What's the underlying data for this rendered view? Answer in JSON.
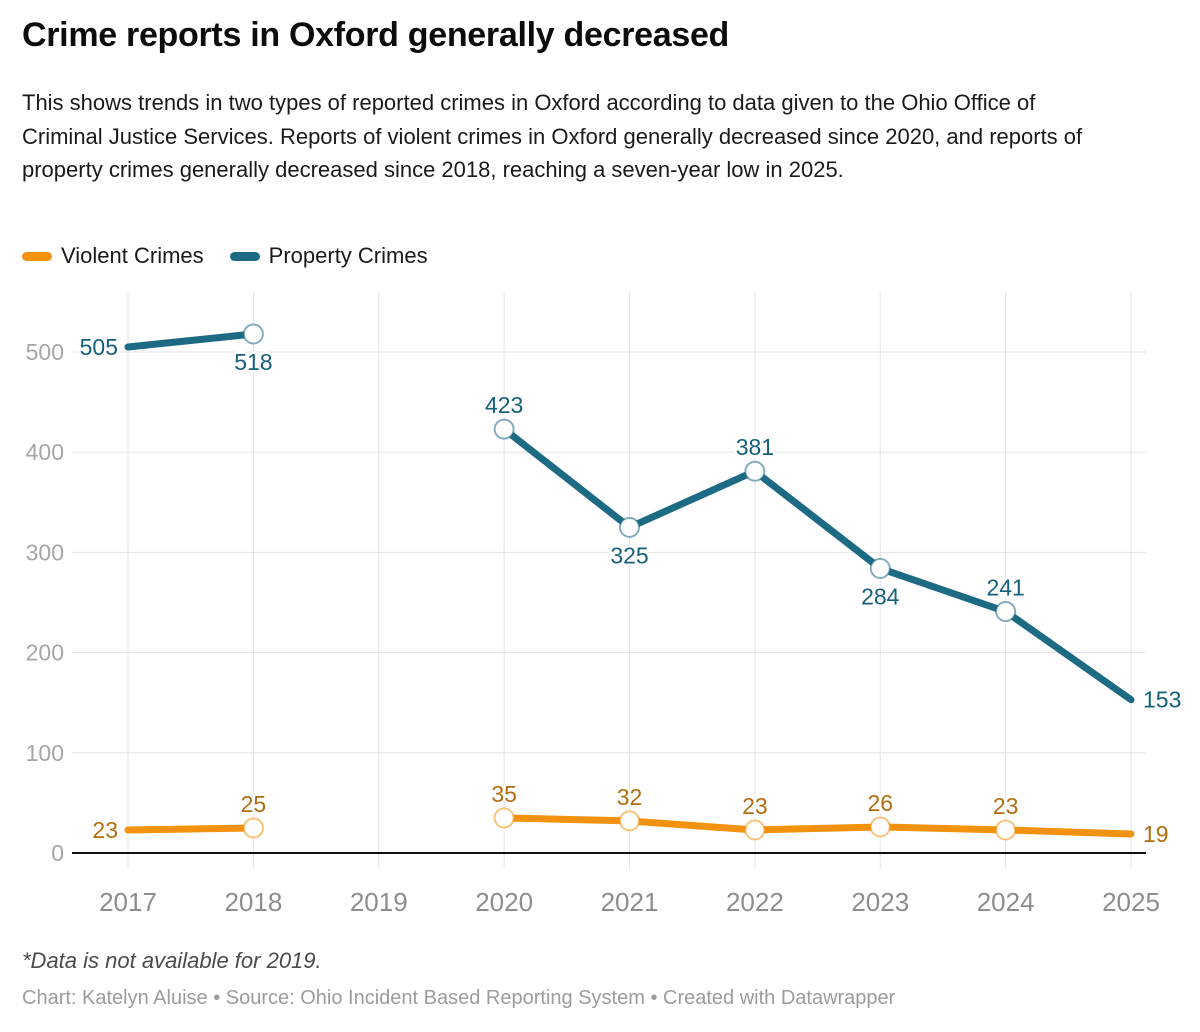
{
  "header": {
    "title": "Crime reports in Oxford generally decreased",
    "description": "This shows trends in two types of reported crimes in Oxford according to data given to the Ohio Office of Criminal Justice Services. Reports of violent crimes in Oxford generally decreased since 2020, and reports of property crimes generally decreased since 2018, reaching a seven-year low in 2025."
  },
  "legend": [
    {
      "label": "Violent Crimes",
      "color": "#F2920E"
    },
    {
      "label": "Property Crimes",
      "color": "#1D6A85"
    }
  ],
  "footer": {
    "footnote": "*Data is not available for 2019.",
    "credit": "Chart: Katelyn Aluise • Source: Ohio Incident Based Reporting System • Created with Datawrapper"
  },
  "chart_data": {
    "type": "line",
    "title": "Crime reports in Oxford generally decreased",
    "x": [
      2017,
      2018,
      2019,
      2020,
      2021,
      2022,
      2023,
      2024,
      2025
    ],
    "x_tick_labels": [
      "2017",
      "2018",
      "2019",
      "2020",
      "2021",
      "2022",
      "2023",
      "2024",
      "2025"
    ],
    "series": [
      {
        "name": "Violent Crimes",
        "color": "#F2920E",
        "label_color": "#B36D11",
        "values": [
          23,
          25,
          null,
          35,
          32,
          23,
          26,
          23,
          19
        ],
        "label_pos": [
          "left",
          "above",
          null,
          "above",
          "above",
          "above",
          "above",
          "above",
          "right"
        ]
      },
      {
        "name": "Property Crimes",
        "color": "#1D6A85",
        "label_color": "#15607A",
        "values": [
          505,
          518,
          null,
          423,
          325,
          381,
          284,
          241,
          153
        ],
        "label_pos": [
          "left",
          "below",
          null,
          "above",
          "below",
          "above",
          "below",
          "above",
          "right"
        ]
      }
    ],
    "yticks": [
      0,
      100,
      200,
      300,
      400,
      500
    ],
    "ylim": [
      0,
      560
    ],
    "xlabel": "",
    "ylabel": "",
    "grid": true,
    "legend_position": "top",
    "missing_data_note": "Data not available for 2019",
    "colors": {
      "grid": "#e3e3e3",
      "axis_line": "#101010",
      "y_tick_text": "#a6a6a6",
      "x_tick_text": "#8d8d8d"
    }
  }
}
